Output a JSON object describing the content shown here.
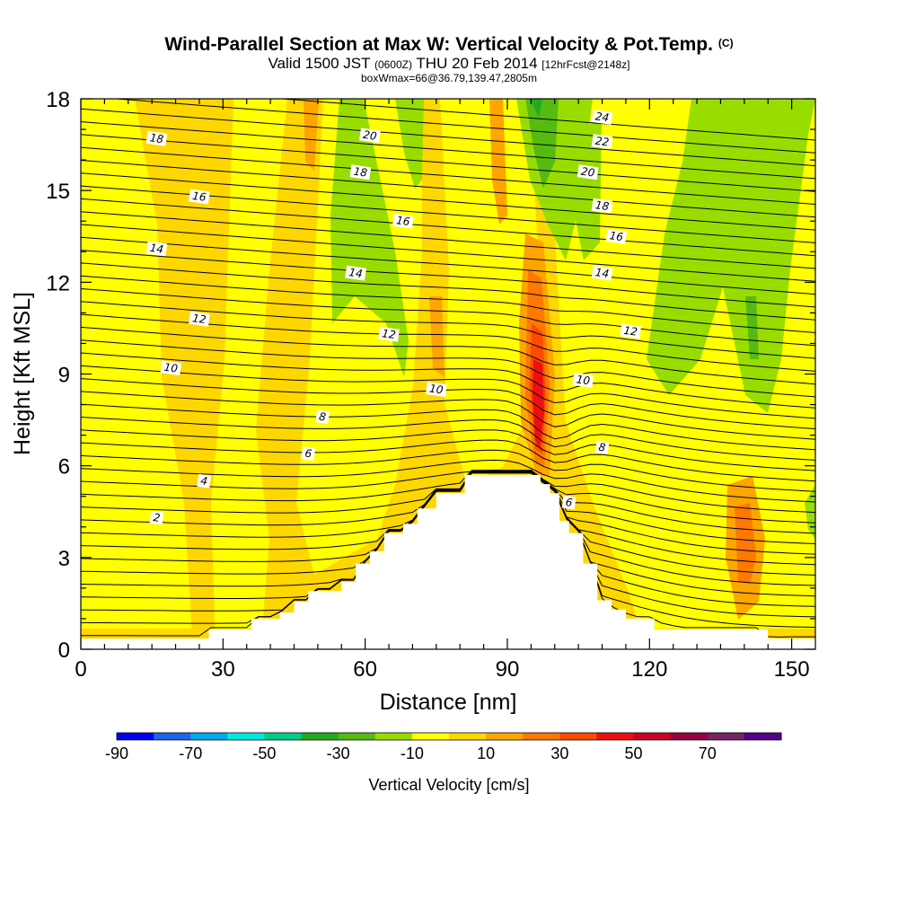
{
  "header": {
    "title": "Wind-Parallel Section at Max W: Vertical Velocity & Pot.Temp.",
    "title_tag": "(C)",
    "valid_prefix": "Valid 1500 JST",
    "valid_utc": "(0600Z)",
    "valid_date": "THU 20 Feb 2014",
    "forecast_info": "[12hrFcst@2148z]",
    "box_info": "boxWmax=66@36.79,139.47,2805m"
  },
  "chart_data": {
    "type": "heatmap",
    "title": "Wind-Parallel Section at Max W: Vertical Velocity & Pot.Temp.",
    "xlabel": "Distance [nm]",
    "ylabel": "Height [Kft MSL]",
    "xlim": [
      0,
      155
    ],
    "ylim": [
      0,
      18
    ],
    "x_ticks": [
      "0",
      "30",
      "60",
      "90",
      "120",
      "150"
    ],
    "y_ticks": [
      "0",
      "3",
      "6",
      "9",
      "12",
      "15",
      "18"
    ],
    "colorbar": {
      "title": "Vertical Velocity [cm/s]",
      "tick_labels": [
        "-90",
        "-70",
        "-50",
        "-30",
        "-10",
        "10",
        "30",
        "50",
        "70"
      ],
      "colors": [
        "#0000ee",
        "#1c64f0",
        "#00aaee",
        "#00e8e0",
        "#00cc88",
        "#22aa22",
        "#55bb11",
        "#99dd00",
        "#ffff00",
        "#ffd700",
        "#ffa500",
        "#ff7800",
        "#ff4a00",
        "#ee1010",
        "#cc0022",
        "#990044",
        "#772266",
        "#550088"
      ]
    },
    "terrain_kft": [
      [
        0,
        0.35
      ],
      [
        27,
        0.35
      ],
      [
        27,
        0.65
      ],
      [
        36,
        0.65
      ],
      [
        36,
        1.0
      ],
      [
        42,
        1.0
      ],
      [
        42,
        1.2
      ],
      [
        45,
        1.2
      ],
      [
        45,
        1.55
      ],
      [
        48,
        1.55
      ],
      [
        48,
        1.9
      ],
      [
        55,
        1.9
      ],
      [
        55,
        2.2
      ],
      [
        58,
        2.2
      ],
      [
        58,
        2.8
      ],
      [
        61,
        2.8
      ],
      [
        61,
        3.2
      ],
      [
        64,
        3.2
      ],
      [
        64,
        3.8
      ],
      [
        68,
        3.8
      ],
      [
        68,
        4.1
      ],
      [
        71,
        4.1
      ],
      [
        71,
        4.6
      ],
      [
        75,
        4.6
      ],
      [
        75,
        5.1
      ],
      [
        81,
        5.1
      ],
      [
        81,
        5.7
      ],
      [
        88,
        5.7
      ],
      [
        88,
        5.7
      ],
      [
        97,
        5.7
      ],
      [
        97,
        5.4
      ],
      [
        99,
        5.4
      ],
      [
        99,
        5.1
      ],
      [
        101,
        5.1
      ],
      [
        101,
        4.2
      ],
      [
        103,
        4.2
      ],
      [
        103,
        3.8
      ],
      [
        106,
        3.8
      ],
      [
        106,
        2.8
      ],
      [
        109,
        2.8
      ],
      [
        109,
        1.6
      ],
      [
        112,
        1.6
      ],
      [
        112,
        1.3
      ],
      [
        115,
        1.3
      ],
      [
        115,
        1.0
      ],
      [
        121,
        1.0
      ],
      [
        121,
        0.65
      ],
      [
        145,
        0.65
      ],
      [
        145,
        0.35
      ],
      [
        155,
        0.35
      ]
    ],
    "theta_contour_labels": [
      {
        "text": "2",
        "x": 16,
        "y": 4.3
      },
      {
        "text": "4",
        "x": 26,
        "y": 5.5
      },
      {
        "text": "6",
        "x": 48,
        "y": 6.4
      },
      {
        "text": "8",
        "x": 51,
        "y": 7.6
      },
      {
        "text": "10",
        "x": 19,
        "y": 9.2
      },
      {
        "text": "10",
        "x": 75,
        "y": 8.5
      },
      {
        "text": "12",
        "x": 25,
        "y": 10.8
      },
      {
        "text": "12",
        "x": 65,
        "y": 10.3
      },
      {
        "text": "14",
        "x": 16,
        "y": 13.1
      },
      {
        "text": "14",
        "x": 58,
        "y": 12.3
      },
      {
        "text": "16",
        "x": 25,
        "y": 14.8
      },
      {
        "text": "16",
        "x": 68,
        "y": 14.0
      },
      {
        "text": "18",
        "x": 16,
        "y": 16.7
      },
      {
        "text": "18",
        "x": 59,
        "y": 15.6
      },
      {
        "text": "20",
        "x": 61,
        "y": 16.8
      },
      {
        "text": "24",
        "x": 110,
        "y": 17.4
      },
      {
        "text": "22",
        "x": 110,
        "y": 16.6
      },
      {
        "text": "20",
        "x": 107,
        "y": 15.6
      },
      {
        "text": "18",
        "x": 110,
        "y": 14.5
      },
      {
        "text": "16",
        "x": 113,
        "y": 13.5
      },
      {
        "text": "14",
        "x": 110,
        "y": 12.3
      },
      {
        "text": "12",
        "x": 116,
        "y": 10.4
      },
      {
        "text": "10",
        "x": 106,
        "y": 8.8
      },
      {
        "text": "8",
        "x": 110,
        "y": 6.6
      },
      {
        "text": "6",
        "x": 103,
        "y": 4.8
      }
    ]
  }
}
